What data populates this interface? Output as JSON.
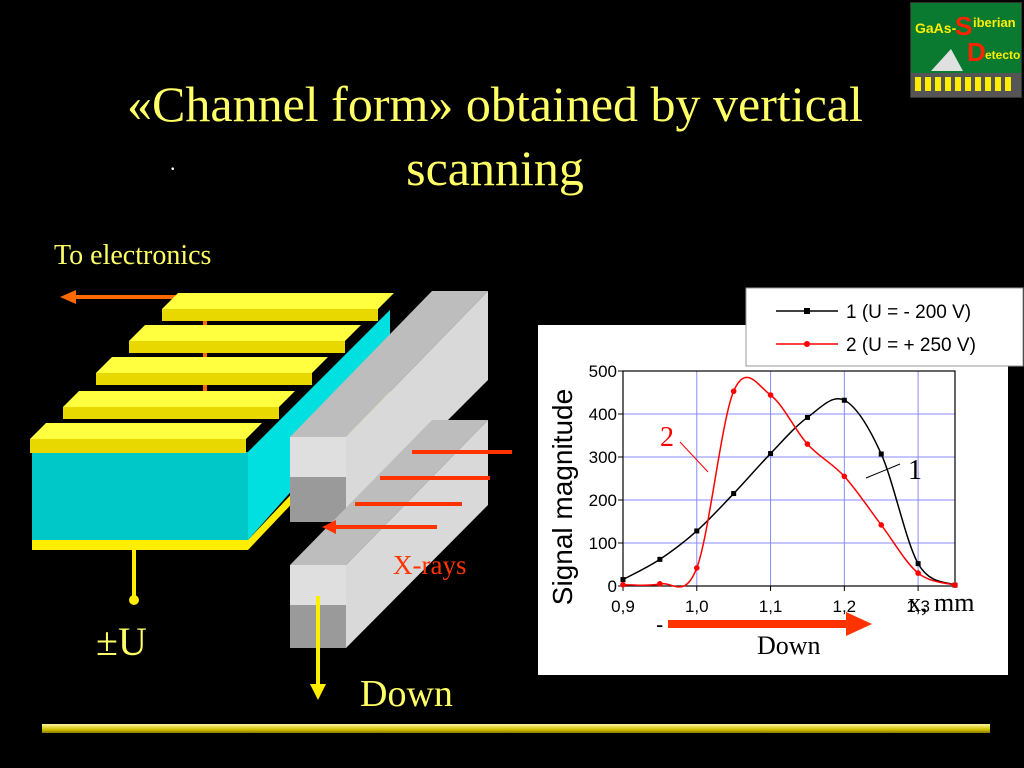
{
  "slide": {
    "title": "«Channel form» obtained by vertical scanning",
    "dot": ".",
    "to_electronics": "To electronics",
    "voltage_label": "±U",
    "down_label": "Down",
    "xrays_label": "X-rays"
  },
  "logo": {
    "text_gaas": "GaAs-",
    "text_s": "S",
    "text_iberian": "iberian",
    "text_d": "D",
    "text_etectors": "etectors"
  },
  "colors": {
    "background": "#000000",
    "title": "#ffff66",
    "curve1": "#000000",
    "curve2": "#ff0000",
    "xrays": "#ff3300",
    "arrow": "#ff3300",
    "detector_top": "#ffff00",
    "detector_body": "#00c8c8"
  },
  "chart_data": {
    "type": "line",
    "ylabel": "Signal magnitude",
    "xlabel": "x, mm",
    "xlim": [
      0.9,
      1.35
    ],
    "ylim": [
      0,
      500
    ],
    "x_ticks": [
      "0,9",
      "1,0",
      "1,1",
      "1,2",
      "1,3"
    ],
    "y_ticks": [
      "0",
      "100",
      "200",
      "300",
      "400",
      "500"
    ],
    "grid": true,
    "legend_position": "top-right",
    "series": [
      {
        "name": "1 (U = - 200 V)",
        "curve_label": "1",
        "color": "#000000",
        "x": [
          0.9,
          0.95,
          1.0,
          1.05,
          1.1,
          1.15,
          1.2,
          1.25,
          1.3,
          1.35
        ],
        "y": [
          15,
          62,
          128,
          215,
          308,
          392,
          432,
          307,
          52,
          2
        ]
      },
      {
        "name": "2 (U = + 250 V)",
        "curve_label": "2",
        "color": "#ff0000",
        "x": [
          0.9,
          0.95,
          1.0,
          1.05,
          1.1,
          1.15,
          1.2,
          1.25,
          1.3,
          1.35
        ],
        "y": [
          3,
          5,
          42,
          453,
          444,
          330,
          255,
          142,
          30,
          2
        ]
      }
    ],
    "direction_arrow": {
      "label": "Down",
      "minus_sign": "-"
    }
  }
}
